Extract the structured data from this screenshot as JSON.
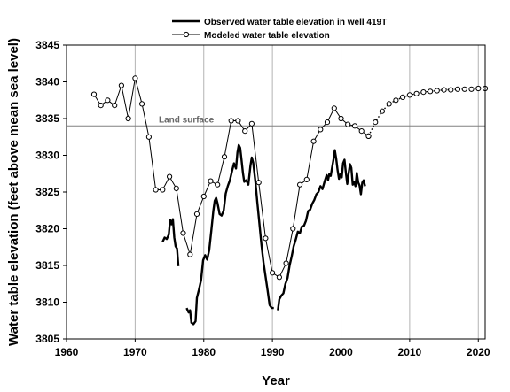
{
  "chart_data": {
    "type": "line",
    "xlabel": "Year",
    "ylabel": "Water table elevation (feet above mean sea level)",
    "xlim": [
      1960,
      2021
    ],
    "ylim": [
      3805,
      3845
    ],
    "xticks": [
      1960,
      1970,
      1980,
      1990,
      2000,
      2010,
      2020
    ],
    "yticks": [
      3805,
      3810,
      3815,
      3820,
      3825,
      3830,
      3835,
      3840,
      3845
    ],
    "grid": "vertical",
    "legend_position": "top-center",
    "annotation": {
      "label": "Land surface",
      "y": 3834
    },
    "series": [
      {
        "name": "Observed water table elevation in well 419T",
        "style": "solid-thick",
        "color": "#000000",
        "segments": [
          [
            [
              1974.0,
              3818.2
            ],
            [
              1974.3,
              3818.8
            ],
            [
              1974.6,
              3818.6
            ],
            [
              1974.9,
              3819.2
            ],
            [
              1975.1,
              3821.2
            ],
            [
              1975.3,
              3820.6
            ],
            [
              1975.5,
              3821.3
            ],
            [
              1975.7,
              3818.8
            ],
            [
              1975.9,
              3817.6
            ],
            [
              1976.1,
              3817.3
            ],
            [
              1976.3,
              3814.9
            ]
          ],
          [
            [
              1977.5,
              3809.2
            ],
            [
              1977.8,
              3808.6
            ],
            [
              1978.0,
              3808.9
            ],
            [
              1978.2,
              3807.2
            ],
            [
              1978.5,
              3807.0
            ],
            [
              1978.8,
              3807.4
            ],
            [
              1979.0,
              3810.6
            ],
            [
              1979.3,
              3811.7
            ],
            [
              1979.6,
              3813.0
            ],
            [
              1979.9,
              3815.7
            ],
            [
              1980.2,
              3816.4
            ],
            [
              1980.5,
              3815.8
            ],
            [
              1980.8,
              3817.1
            ],
            [
              1981.1,
              3819.8
            ],
            [
              1981.4,
              3822.5
            ],
            [
              1981.6,
              3823.8
            ],
            [
              1981.8,
              3824.2
            ],
            [
              1982.0,
              3823.5
            ],
            [
              1982.3,
              3822.0
            ],
            [
              1982.6,
              3821.8
            ],
            [
              1982.9,
              3822.5
            ],
            [
              1983.2,
              3824.8
            ],
            [
              1983.5,
              3825.8
            ],
            [
              1983.8,
              3826.6
            ],
            [
              1984.1,
              3827.8
            ],
            [
              1984.4,
              3828.9
            ],
            [
              1984.7,
              3828.2
            ],
            [
              1984.9,
              3830.4
            ],
            [
              1985.1,
              3831.4
            ],
            [
              1985.3,
              3831.0
            ],
            [
              1985.5,
              3829.4
            ],
            [
              1985.7,
              3827.6
            ],
            [
              1985.9,
              3826.4
            ],
            [
              1986.2,
              3826.6
            ],
            [
              1986.5,
              3826.0
            ],
            [
              1986.8,
              3828.6
            ],
            [
              1987.0,
              3829.7
            ],
            [
              1987.2,
              3829.0
            ],
            [
              1987.5,
              3826.6
            ],
            [
              1987.8,
              3823.6
            ],
            [
              1988.1,
              3820.8
            ],
            [
              1988.4,
              3817.8
            ],
            [
              1988.7,
              3815.4
            ],
            [
              1989.0,
              3813.5
            ],
            [
              1989.3,
              3811.6
            ],
            [
              1989.6,
              3809.6
            ],
            [
              1989.9,
              3809.2
            ],
            [
              1990.2,
              3809.2
            ]
          ],
          [
            [
              1990.8,
              3808.9
            ],
            [
              1991.0,
              3810.4
            ],
            [
              1991.3,
              3810.9
            ],
            [
              1991.6,
              3811.2
            ],
            [
              1991.9,
              3812.5
            ],
            [
              1992.2,
              3813.3
            ],
            [
              1992.5,
              3815.0
            ],
            [
              1992.8,
              3816.2
            ],
            [
              1993.1,
              3817.6
            ],
            [
              1993.4,
              3818.5
            ],
            [
              1993.7,
              3819.6
            ],
            [
              1994.0,
              3819.4
            ],
            [
              1994.3,
              3820.3
            ],
            [
              1994.6,
              3820.4
            ],
            [
              1994.9,
              3821.1
            ],
            [
              1995.2,
              3822.4
            ],
            [
              1995.5,
              3822.6
            ],
            [
              1995.8,
              3823.4
            ],
            [
              1996.1,
              3823.9
            ],
            [
              1996.4,
              3824.7
            ],
            [
              1996.7,
              3825.0
            ],
            [
              1997.0,
              3825.8
            ],
            [
              1997.3,
              3825.4
            ],
            [
              1997.6,
              3826.4
            ],
            [
              1997.9,
              3827.3
            ],
            [
              1998.1,
              3826.6
            ],
            [
              1998.3,
              3827.5
            ],
            [
              1998.5,
              3827.2
            ],
            [
              1998.7,
              3828.3
            ],
            [
              1998.9,
              3829.4
            ],
            [
              1999.1,
              3830.7
            ],
            [
              1999.3,
              3829.5
            ],
            [
              1999.5,
              3828.0
            ],
            [
              1999.7,
              3826.8
            ],
            [
              1999.9,
              3827.4
            ],
            [
              2000.1,
              3827.0
            ],
            [
              2000.3,
              3828.9
            ],
            [
              2000.5,
              3829.4
            ],
            [
              2000.7,
              3827.7
            ],
            [
              2000.9,
              3826.1
            ],
            [
              2001.1,
              3827.5
            ],
            [
              2001.3,
              3828.8
            ],
            [
              2001.5,
              3828.3
            ],
            [
              2001.7,
              3826.0
            ],
            [
              2001.9,
              3826.4
            ],
            [
              2002.1,
              3825.8
            ],
            [
              2002.3,
              3827.6
            ],
            [
              2002.5,
              3826.3
            ],
            [
              2002.7,
              3825.9
            ],
            [
              2002.9,
              3824.7
            ],
            [
              2003.1,
              3826.3
            ],
            [
              2003.3,
              3826.6
            ],
            [
              2003.5,
              3825.8
            ]
          ]
        ]
      },
      {
        "name": "Modeled water table elevation",
        "style": "thin-with-circles",
        "color": "#000000",
        "x": [
          1964,
          1965,
          1966,
          1967,
          1968,
          1969,
          1970,
          1971,
          1972,
          1973,
          1974,
          1975,
          1976,
          1977,
          1978,
          1979,
          1980,
          1981,
          1982,
          1983,
          1984,
          1985,
          1986,
          1987,
          1988,
          1989,
          1990,
          1991,
          1992,
          1993,
          1994,
          1995,
          1996,
          1997,
          1998,
          1999,
          2000,
          2001,
          2002,
          2003,
          2004
        ],
        "y": [
          3838.3,
          3836.8,
          3837.5,
          3836.8,
          3839.5,
          3835.0,
          3840.5,
          3837.0,
          3832.5,
          3825.3,
          3825.3,
          3827.1,
          3825.5,
          3819.4,
          3816.5,
          3822.0,
          3824.4,
          3826.5,
          3826.0,
          3829.8,
          3834.7,
          3834.7,
          3833.3,
          3834.3,
          3826.3,
          3818.7,
          3814.0,
          3813.4,
          3815.3,
          3820.0,
          3826.0,
          3826.7,
          3831.9,
          3833.5,
          3834.5,
          3836.4,
          3835.0,
          3834.2,
          3834.0,
          3833.3,
          3832.6
        ]
      },
      {
        "name": "",
        "style": "dotted-with-circles",
        "color": "#000000",
        "x": [
          2004,
          2005,
          2006,
          2007,
          2008,
          2009,
          2010,
          2011,
          2012,
          2013,
          2014,
          2015,
          2016,
          2017,
          2018,
          2019,
          2020,
          2021
        ],
        "y": [
          3832.6,
          3834.5,
          3836.0,
          3837.0,
          3837.5,
          3837.9,
          3838.2,
          3838.4,
          3838.6,
          3838.7,
          3838.8,
          3838.9,
          3838.9,
          3839.0,
          3839.0,
          3839.0,
          3839.1,
          3839.1
        ]
      }
    ]
  }
}
